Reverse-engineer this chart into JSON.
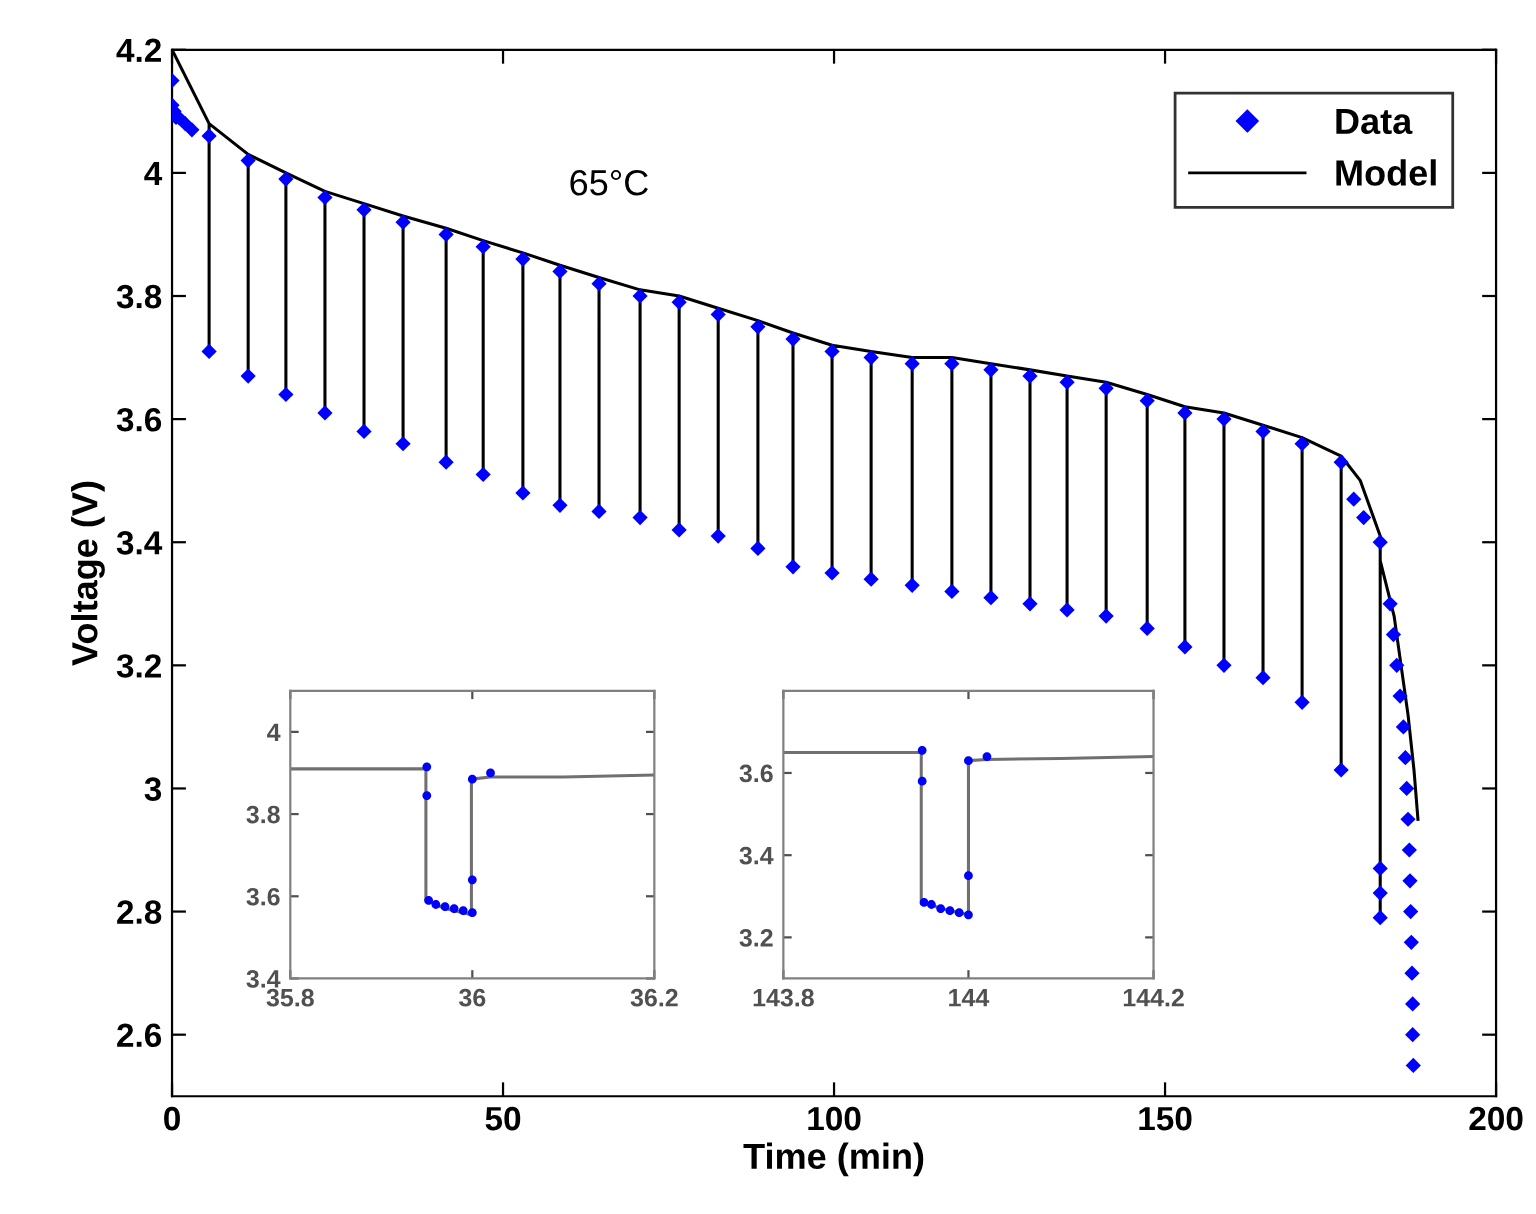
{
  "chart_data": [
    {
      "type": "scatter",
      "xlabel": "Time (min)",
      "ylabel": "Voltage (V)",
      "annotations": [
        "65°C"
      ],
      "xlim": [
        0,
        200
      ],
      "ylim": [
        2.5,
        4.2
      ],
      "xticks": [
        0,
        50,
        100,
        150,
        200
      ],
      "yticks": [
        2.6,
        2.8,
        3,
        3.2,
        3.4,
        3.6,
        3.8,
        4,
        4.2
      ],
      "grid": false,
      "legend": "top right",
      "series": [
        {
          "name": "Data",
          "marker": "diamond",
          "color": "#0000ff",
          "x": [
            0,
            0,
            0.3,
            0.6,
            1,
            2,
            3,
            5.6,
            5.6,
            11.5,
            11.5,
            17.2,
            17.2,
            23.1,
            23.1,
            29.0,
            29.0,
            34.9,
            34.9,
            41.4,
            41.4,
            47.0,
            47.0,
            53.0,
            53.0,
            58.6,
            58.6,
            64.5,
            64.5,
            70.7,
            70.7,
            76.6,
            76.6,
            82.5,
            82.5,
            88.5,
            88.5,
            93.8,
            93.8,
            99.7,
            99.7,
            105.6,
            105.6,
            111.8,
            111.8,
            117.8,
            117.8,
            123.7,
            123.7,
            129.6,
            129.6,
            135.2,
            135.2,
            141.1,
            141.1,
            147.3,
            147.3,
            153.0,
            153.0,
            158.9,
            158.9,
            164.8,
            164.8,
            170.7,
            170.7,
            176.6,
            176.6,
            178.5,
            180,
            182.5,
            182.5,
            182.5,
            182.5,
            184,
            184.5,
            185,
            185.5,
            186,
            186.3,
            186.5,
            186.7,
            186.9,
            187,
            187.1,
            187.2,
            187.3,
            187.4,
            187.4,
            187.5
          ],
          "values": [
            4.15,
            4.11,
            4.1,
            4.09,
            4.09,
            4.08,
            4.07,
            4.06,
            3.71,
            4.02,
            3.67,
            3.99,
            3.64,
            3.96,
            3.61,
            3.94,
            3.58,
            3.92,
            3.56,
            3.9,
            3.53,
            3.88,
            3.51,
            3.86,
            3.48,
            3.84,
            3.46,
            3.82,
            3.45,
            3.8,
            3.44,
            3.79,
            3.42,
            3.77,
            3.41,
            3.75,
            3.39,
            3.73,
            3.36,
            3.71,
            3.35,
            3.7,
            3.34,
            3.69,
            3.33,
            3.69,
            3.32,
            3.68,
            3.31,
            3.67,
            3.3,
            3.66,
            3.29,
            3.65,
            3.28,
            3.63,
            3.26,
            3.61,
            3.23,
            3.6,
            3.2,
            3.58,
            3.18,
            3.56,
            3.14,
            3.53,
            3.03,
            3.47,
            3.44,
            3.4,
            2.87,
            2.83,
            2.79,
            3.3,
            3.25,
            3.2,
            3.15,
            3.1,
            3.05,
            3.0,
            2.95,
            2.9,
            2.85,
            2.8,
            2.75,
            2.7,
            2.65,
            2.6,
            2.55
          ]
        },
        {
          "name": "Model",
          "type": "line",
          "marker": "none",
          "line_style": "solid",
          "color": "#000000",
          "x": [
            0,
            5.6,
            5.6,
            5.6,
            11.5,
            11.5,
            11.5,
            17.2,
            17.2,
            17.2,
            23.1,
            23.1,
            23.1,
            29.0,
            29.0,
            29.0,
            34.9,
            34.9,
            34.9,
            41.4,
            41.4,
            41.4,
            47.0,
            47.0,
            47.0,
            53.0,
            53.0,
            53.0,
            58.6,
            58.6,
            58.6,
            64.5,
            64.5,
            64.5,
            70.7,
            70.7,
            70.7,
            76.6,
            76.6,
            76.6,
            82.5,
            82.5,
            82.5,
            88.5,
            88.5,
            88.5,
            93.8,
            93.8,
            93.8,
            99.7,
            99.7,
            99.7,
            105.6,
            105.6,
            105.6,
            111.8,
            111.8,
            111.8,
            117.8,
            117.8,
            117.8,
            123.7,
            123.7,
            123.7,
            129.6,
            129.6,
            129.6,
            135.2,
            135.2,
            135.2,
            141.1,
            141.1,
            141.1,
            147.3,
            147.3,
            147.3,
            153.0,
            153.0,
            153.0,
            158.9,
            158.9,
            158.9,
            164.8,
            164.8,
            164.8,
            170.7,
            170.7,
            170.7,
            176.6,
            176.6,
            176.6,
            179.5,
            182.5,
            182.5,
            182.5,
            184.6,
            186.7,
            187.6,
            188.2
          ],
          "values": [
            4.2,
            4.08,
            3.71,
            4.08,
            4.03,
            3.67,
            4.03,
            4.0,
            3.64,
            4.0,
            3.97,
            3.61,
            3.97,
            3.95,
            3.58,
            3.95,
            3.93,
            3.56,
            3.93,
            3.91,
            3.53,
            3.91,
            3.89,
            3.51,
            3.89,
            3.87,
            3.48,
            3.87,
            3.85,
            3.46,
            3.85,
            3.83,
            3.45,
            3.83,
            3.81,
            3.44,
            3.81,
            3.8,
            3.42,
            3.8,
            3.78,
            3.41,
            3.78,
            3.76,
            3.39,
            3.76,
            3.74,
            3.36,
            3.74,
            3.72,
            3.35,
            3.72,
            3.71,
            3.34,
            3.71,
            3.7,
            3.33,
            3.7,
            3.7,
            3.32,
            3.7,
            3.69,
            3.31,
            3.69,
            3.68,
            3.3,
            3.68,
            3.67,
            3.29,
            3.67,
            3.66,
            3.28,
            3.66,
            3.64,
            3.26,
            3.64,
            3.62,
            3.23,
            3.62,
            3.61,
            3.2,
            3.61,
            3.59,
            3.18,
            3.59,
            3.57,
            3.14,
            3.57,
            3.54,
            3.03,
            3.54,
            3.5,
            3.41,
            2.79,
            3.37,
            3.28,
            3.12,
            3.03,
            2.95
          ]
        }
      ]
    },
    {
      "type": "scatter",
      "xlim": [
        35.8,
        36.2
      ],
      "ylim": [
        3.4,
        4.1
      ],
      "xticks": [
        35.8,
        36,
        36.2
      ],
      "yticks": [
        3.4,
        3.6,
        3.8,
        4
      ],
      "grid": false,
      "series": [
        {
          "type": "line",
          "marker": "none",
          "line_style": "solid",
          "color": "#707070",
          "x": [
            35.8,
            35.949,
            35.949,
            35.97,
            35.999,
            35.999,
            36.02,
            36.1,
            36.2
          ],
          "values": [
            3.91,
            3.91,
            3.59,
            3.57,
            3.555,
            3.885,
            3.89,
            3.89,
            3.895
          ]
        },
        {
          "marker": "circle",
          "color": "#0000ff",
          "x": [
            35.95,
            35.95,
            35.952,
            35.96,
            35.97,
            35.98,
            35.99,
            36.0,
            36.0,
            36.0,
            36.02
          ],
          "values": [
            3.915,
            3.845,
            3.59,
            3.58,
            3.575,
            3.57,
            3.565,
            3.56,
            3.64,
            3.885,
            3.9
          ]
        }
      ]
    },
    {
      "type": "scatter",
      "xlim": [
        143.8,
        144.2
      ],
      "ylim": [
        3.1,
        3.8
      ],
      "xticks": [
        143.8,
        144,
        144.2
      ],
      "yticks": [
        3.2,
        3.4,
        3.6
      ],
      "grid": false,
      "series": [
        {
          "type": "line",
          "marker": "none",
          "line_style": "solid",
          "color": "#707070",
          "x": [
            143.8,
            143.949,
            143.949,
            143.97,
            144.0,
            144.0,
            144.02,
            144.1,
            144.2
          ],
          "values": [
            3.65,
            3.65,
            3.29,
            3.27,
            3.255,
            3.63,
            3.633,
            3.635,
            3.64
          ]
        },
        {
          "marker": "circle",
          "color": "#0000ff",
          "x": [
            143.95,
            143.95,
            143.952,
            143.96,
            143.97,
            143.98,
            143.99,
            144.0,
            144.0,
            144.0,
            144.02
          ],
          "values": [
            3.655,
            3.58,
            3.285,
            3.28,
            3.27,
            3.265,
            3.26,
            3.255,
            3.35,
            3.63,
            3.64
          ]
        }
      ]
    }
  ]
}
